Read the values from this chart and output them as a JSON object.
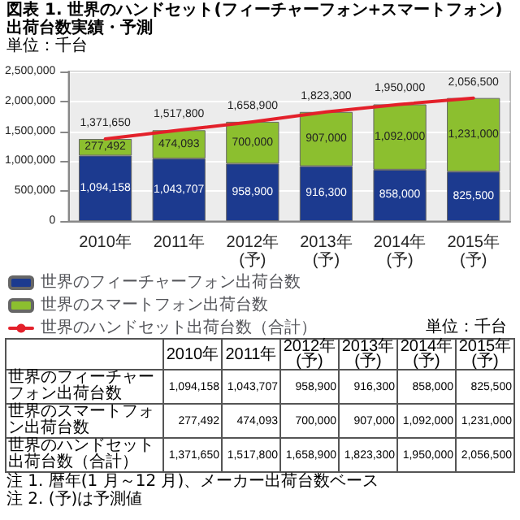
{
  "chart_data": {
    "type": "bar",
    "title": "図表 1. 世界のハンドセット(フィーチャーフォン+スマートフォン)出荷台数実績・予測",
    "annotations": [
      "単位：千台",
      "単位：千台",
      "注 1. 暦年(1 月～12 月)、メーカー出荷台数ベース",
      "注 2. (予)は予測値"
    ],
    "categories": [
      "2010年",
      "2011年",
      "2012年(予)",
      "2013年(予)",
      "2014年(予)",
      "2015年(予)"
    ],
    "series": [
      {
        "name": "世界のフィーチャーフォン出荷台数",
        "color": "#1c3a8f",
        "values": [
          1094158,
          1043707,
          958900,
          916300,
          858000,
          825500
        ],
        "value_labels": [
          "1,094,158",
          "1,043,707",
          "958,900",
          "916,300",
          "858,000",
          "825,500"
        ]
      },
      {
        "name": "世界のスマートフォン出荷台数",
        "color": "#8cbf2f",
        "values": [
          277492,
          474093,
          700000,
          907000,
          1092000,
          1231000
        ],
        "value_labels": [
          "277,492",
          "474,093",
          "700,000",
          "907,000",
          "1,092,000",
          "1,231,000"
        ]
      },
      {
        "name": "世界のハンドセット出荷台数（合計）",
        "type": "line",
        "color": "#e3202a",
        "values": [
          1371650,
          1517800,
          1658900,
          1823300,
          1950000,
          2056500
        ],
        "value_labels": [
          "1,371,650",
          "1,517,800",
          "1,658,900",
          "1,823,300",
          "1,950,000",
          "2,056,500"
        ]
      }
    ],
    "stacked": true,
    "ylim": [
      0,
      2500000
    ],
    "yticks": [
      0,
      {
        "value": 500000,
        "label": "500,000"
      },
      {
        "value": 1000000,
        "label": "1,000,000"
      },
      {
        "value": 1500000,
        "label": "1,500,000"
      },
      {
        "value": 2000000,
        "label": "2,000,000"
      },
      {
        "value": 2500000,
        "label": "2,500,000"
      }
    ],
    "grid": "y",
    "legend": "bottom",
    "marker": "none"
  }
}
